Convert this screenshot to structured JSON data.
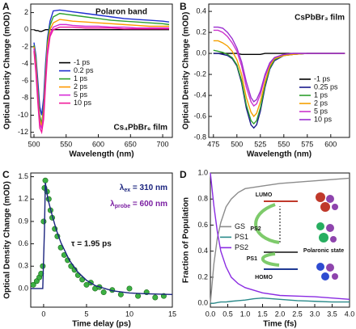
{
  "chart_data": [
    {
      "type": "line",
      "panel_label": "A",
      "x_label": "Wavelength (nm)",
      "y_label": "Optical Density Change (mOD)",
      "annotations": [
        {
          "text": "Polaron band",
          "color": "#1f3a93"
        },
        {
          "text": "Cs₄PbBr₆ film",
          "color": "#111111"
        }
      ],
      "xlim": [
        495,
        715
      ],
      "xticks": [
        500,
        550,
        600,
        650,
        700
      ],
      "ylim": [
        -12.6,
        3
      ],
      "yticks": [
        -12,
        -10,
        -8,
        -6,
        -4,
        -2,
        0,
        2
      ],
      "legend": "center",
      "x": [
        500,
        503,
        506,
        509,
        512,
        515,
        518,
        521,
        525,
        530,
        540,
        550,
        560,
        580,
        600,
        620,
        640,
        660,
        680,
        700,
        710
      ],
      "series": [
        {
          "name": "-1 ps",
          "color": "#000000",
          "values": [
            0,
            -0.1,
            -0.1,
            -0.2,
            -0.2,
            -0.1,
            0,
            0,
            0,
            0,
            0,
            0,
            0,
            0,
            0,
            0,
            0,
            0,
            0,
            0,
            0
          ]
        },
        {
          "name": "0.2 ps",
          "color": "#1f2fd0",
          "values": [
            -1.5,
            -3,
            -6,
            -9,
            -10,
            -8,
            -4,
            -1,
            1,
            2.2,
            2.3,
            2.2,
            2.1,
            1.9,
            1.7,
            1.5,
            1.3,
            1.2,
            1.1,
            1.0,
            0.9
          ]
        },
        {
          "name": "1 ps",
          "color": "#2ca02c",
          "values": [
            -1.8,
            -3.5,
            -7,
            -10,
            -11,
            -9,
            -5,
            -1.5,
            0.5,
            1.5,
            1.9,
            1.8,
            1.7,
            1.5,
            1.3,
            1.1,
            1.0,
            0.9,
            0.8,
            0.7,
            0.6
          ]
        },
        {
          "name": "2 ps",
          "color": "#ff9900",
          "values": [
            -2,
            -4,
            -7.5,
            -10.5,
            -11.3,
            -9.5,
            -5.5,
            -2,
            0,
            0.8,
            1.2,
            1.1,
            1.0,
            0.9,
            0.8,
            0.7,
            0.6,
            0.5,
            0.4,
            0.4,
            0.4
          ]
        },
        {
          "name": "5 ps",
          "color": "#d62ad6",
          "values": [
            -2.2,
            -4.5,
            -8,
            -11,
            -11.6,
            -10,
            -6,
            -2.5,
            -0.5,
            0.3,
            0.6,
            0.6,
            0.5,
            0.4,
            0.4,
            0.3,
            0.3,
            0.2,
            0.2,
            0.2,
            0.2
          ]
        },
        {
          "name": "10 ps",
          "color": "#f0189a",
          "values": [
            -2.5,
            -5,
            -8.5,
            -11.5,
            -12,
            -10.5,
            -6.5,
            -3,
            -0.8,
            0,
            0.3,
            0.3,
            0.3,
            0.2,
            0.2,
            0.2,
            0.1,
            0.1,
            0.1,
            0.1,
            0.1
          ]
        }
      ]
    },
    {
      "type": "line",
      "panel_label": "B",
      "x_label": "Wavelength (nm)",
      "y_label": "Optical Density Change (mOD)",
      "annotations": [
        {
          "text": "CsPbBr₃ film",
          "color": "#111111"
        }
      ],
      "xlim": [
        470,
        620
      ],
      "xticks": [
        475,
        500,
        525,
        550,
        575,
        600
      ],
      "ylim": [
        -0.8,
        0.47
      ],
      "yticks": [
        0.4,
        0.2,
        {
          "value": 0,
          "label": "0.0"
        },
        -0.2,
        -0.4,
        -0.6,
        -0.8
      ],
      "legend": "lower right",
      "x": [
        475,
        480,
        485,
        490,
        495,
        500,
        505,
        510,
        515,
        518,
        521,
        525,
        530,
        535,
        540,
        550,
        560,
        575,
        600,
        615
      ],
      "series": [
        {
          "name": "-1 ps",
          "color": "#000000",
          "values": [
            0,
            0,
            0,
            0,
            0,
            0,
            -0.01,
            -0.01,
            -0.01,
            -0.01,
            -0.01,
            -0.01,
            0,
            0,
            0,
            0,
            0,
            0,
            0,
            0
          ]
        },
        {
          "name": "0.25 ps",
          "color": "#1a1a8c",
          "values": [
            0,
            0,
            -0.01,
            -0.02,
            -0.05,
            -0.12,
            -0.28,
            -0.52,
            -0.68,
            -0.71,
            -0.68,
            -0.55,
            -0.32,
            -0.15,
            -0.07,
            -0.02,
            -0.01,
            0,
            0,
            0
          ]
        },
        {
          "name": "1 ps",
          "color": "#2e9e2e",
          "values": [
            0.03,
            0.02,
            0.01,
            -0.01,
            -0.04,
            -0.11,
            -0.26,
            -0.49,
            -0.64,
            -0.67,
            -0.64,
            -0.52,
            -0.3,
            -0.14,
            -0.06,
            -0.02,
            -0.01,
            0,
            0,
            0
          ]
        },
        {
          "name": "2 ps",
          "color": "#f5a000",
          "values": [
            0.12,
            0.12,
            0.1,
            0.07,
            0.02,
            -0.06,
            -0.2,
            -0.42,
            -0.56,
            -0.6,
            -0.57,
            -0.46,
            -0.27,
            -0.12,
            -0.05,
            -0.02,
            -0.01,
            0,
            0,
            0
          ]
        },
        {
          "name": "5 ps",
          "color": "#cc33cc",
          "values": [
            0.22,
            0.22,
            0.2,
            0.16,
            0.1,
            0.02,
            -0.12,
            -0.32,
            -0.46,
            -0.5,
            -0.48,
            -0.39,
            -0.22,
            -0.1,
            -0.04,
            -0.01,
            0,
            0,
            0,
            0
          ]
        },
        {
          "name": "10 ps",
          "color": "#9b2fd0",
          "values": [
            0.25,
            0.25,
            0.24,
            0.2,
            0.14,
            0.05,
            -0.08,
            -0.27,
            -0.42,
            -0.46,
            -0.44,
            -0.36,
            -0.2,
            -0.09,
            -0.04,
            -0.01,
            0,
            0,
            0,
            0
          ]
        }
      ]
    },
    {
      "type": "scatter",
      "panel_label": "C",
      "x_label": "Time delay (ps)",
      "y_label": "Optical Density Change (mOD)",
      "annotations": [
        {
          "text": "λ",
          "sub": "ex",
          "rest": " = 310 nm",
          "color": "#1a237e"
        },
        {
          "text": "λ",
          "sub": "probe",
          "rest": " = 600 nm",
          "color": "#7b1fa2"
        },
        {
          "text": "τ = 1.95 ps",
          "color": "#111111"
        }
      ],
      "xlim": [
        -1.5,
        15
      ],
      "xticks": [
        0,
        5,
        10,
        15
      ],
      "ylim": [
        -0.25,
        1.55
      ],
      "yticks": [
        {
          "value": 0,
          "label": "0.0"
        },
        0.3,
        0.6,
        0.9,
        1.2,
        1.5
      ],
      "series": [
        {
          "marker": "circle",
          "color": "#3cb043",
          "x": [
            -1.2,
            -0.8,
            -0.5,
            -0.3,
            -0.1,
            0,
            0.1,
            0.2,
            0.4,
            0.6,
            0.8,
            1.0,
            1.3,
            1.6,
            2.0,
            2.4,
            2.8,
            3.2,
            3.6,
            4.0,
            4.5,
            5,
            5.5,
            6,
            6.5,
            7,
            8,
            9,
            10,
            11,
            12,
            13,
            14
          ],
          "values": [
            0.05,
            0.1,
            0.15,
            0.2,
            0.3,
            0.9,
            1.35,
            1.45,
            1.3,
            1.2,
            1.05,
            0.95,
            0.8,
            0.7,
            0.55,
            0.45,
            0.38,
            0.3,
            0.25,
            0.18,
            0.12,
            0.05,
            0.08,
            0.0,
            0.02,
            -0.05,
            -0.02,
            -0.08,
            0.0,
            -0.1,
            -0.05,
            -0.12,
            -0.1
          ]
        },
        {
          "marker": "line",
          "color": "#1a237e",
          "x": [
            -1.5,
            -0.1,
            0.1,
            0.2,
            0.5,
            1,
            1.5,
            2,
            3,
            4,
            5,
            6,
            8,
            10,
            12,
            15
          ],
          "values": [
            0,
            0,
            0.8,
            1.42,
            1.2,
            0.98,
            0.78,
            0.62,
            0.38,
            0.22,
            0.11,
            0.04,
            -0.03,
            -0.06,
            -0.07,
            -0.08
          ]
        }
      ]
    },
    {
      "type": "line",
      "panel_label": "D",
      "x_label": "Time (fs)",
      "y_label": "Fraction of Population",
      "annotations": [
        {
          "text": "LUMO"
        },
        {
          "text": "PS2"
        },
        {
          "text": "Polaronic state"
        },
        {
          "text": "PS1"
        },
        {
          "text": "HOMO"
        }
      ],
      "xlim": [
        0,
        4
      ],
      "xticks": [
        {
          "value": 0,
          "label": "0.0"
        },
        0.5,
        {
          "value": 1,
          "label": "1.0"
        },
        1.5,
        {
          "value": 2,
          "label": "2.0"
        },
        2.5,
        {
          "value": 3,
          "label": "3.0"
        },
        3.5,
        {
          "value": 4,
          "label": "4.0"
        }
      ],
      "ylim": [
        -0.03,
        1.0
      ],
      "yticks": [
        {
          "value": 0,
          "label": "0.0"
        },
        0.2,
        0.4,
        0.6,
        0.8,
        {
          "value": 1,
          "label": "1.0"
        }
      ],
      "legend": "center left",
      "x": [
        0,
        0.1,
        0.2,
        0.3,
        0.45,
        0.6,
        0.8,
        1.0,
        1.25,
        1.5,
        2.0,
        2.5,
        3.0,
        3.5,
        4.0
      ],
      "series": [
        {
          "name": "GS",
          "color": "#8c8c8c",
          "values": [
            0,
            0.3,
            0.5,
            0.62,
            0.74,
            0.8,
            0.85,
            0.88,
            0.89,
            0.9,
            0.92,
            0.93,
            0.94,
            0.95,
            0.96
          ]
        },
        {
          "name": "PS1",
          "color": "#2a8a8a",
          "values": [
            0,
            0,
            0.005,
            0.01,
            0.01,
            0.015,
            0.02,
            0.025,
            0.035,
            0.04,
            0.03,
            0.02,
            0.015,
            0.01,
            0.01
          ]
        },
        {
          "name": "PS2",
          "color": "#8a2be2",
          "values": [
            1.0,
            0.75,
            0.55,
            0.4,
            0.28,
            0.2,
            0.15,
            0.12,
            0.1,
            0.08,
            0.06,
            0.055,
            0.05,
            0.04,
            0.03
          ]
        }
      ]
    }
  ]
}
